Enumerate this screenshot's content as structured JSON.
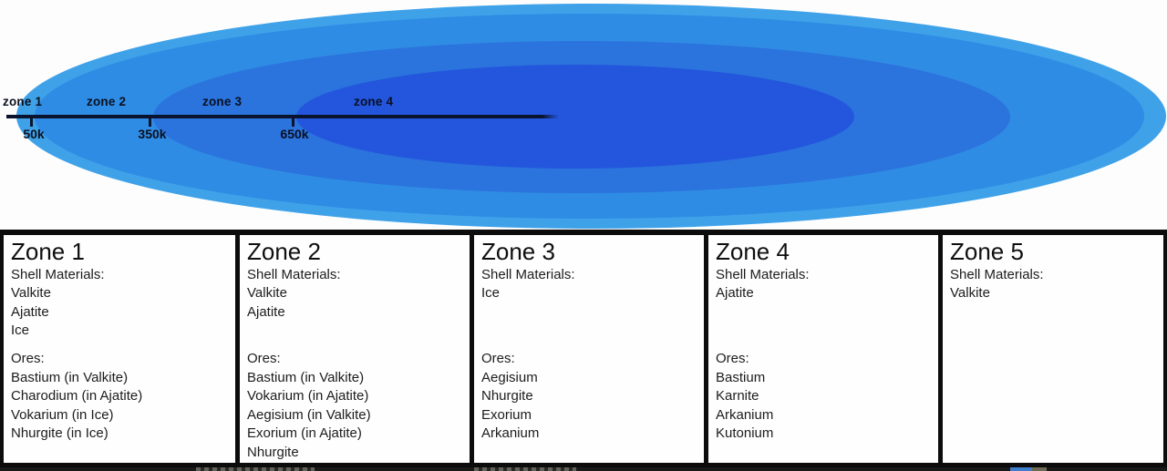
{
  "diagram": {
    "zone_labels": [
      "zone 1",
      "zone 2",
      "zone 3",
      "zone 4"
    ],
    "axis_ticks": [
      "50k",
      "350k",
      "650k"
    ],
    "colors": {
      "zone1_fill": "#3fa2e9",
      "zone2_fill": "#2f8ce4",
      "zone3_fill": "#2b73dd",
      "zone4_fill": "#2356dd",
      "axis": "#0a142e"
    }
  },
  "zones": [
    {
      "title": "Zone 1",
      "shell_heading": "Shell Materials:",
      "shell_materials": [
        "Valkite",
        "Ajatite",
        "Ice"
      ],
      "ores_heading": "Ores:",
      "ores": [
        "Bastium (in Valkite)",
        "Charodium (in Ajatite)",
        "Vokarium (in Ice)",
        "Nhurgite (in Ice)"
      ]
    },
    {
      "title": "Zone 2",
      "shell_heading": "Shell Materials:",
      "shell_materials": [
        "Valkite",
        "Ajatite"
      ],
      "ores_heading": "Ores:",
      "ores": [
        "Bastium (in Valkite)",
        "Vokarium (in Ajatite)",
        "Aegisium (in Valkite)",
        "Exorium (in Ajatite)",
        "Nhurgite"
      ]
    },
    {
      "title": "Zone 3",
      "shell_heading": "Shell Materials:",
      "shell_materials": [
        "Ice"
      ],
      "ores_heading": "Ores:",
      "ores": [
        "Aegisium",
        "Nhurgite",
        "Exorium",
        "Arkanium"
      ]
    },
    {
      "title": "Zone 4",
      "shell_heading": "Shell Materials:",
      "shell_materials": [
        "Ajatite"
      ],
      "ores_heading": "Ores:",
      "ores": [
        "Bastium",
        "Karnite",
        "Arkanium",
        "Kutonium"
      ]
    },
    {
      "title": "Zone 5",
      "shell_heading": "Shell Materials:",
      "shell_materials": [
        "Valkite"
      ],
      "ores": []
    }
  ]
}
